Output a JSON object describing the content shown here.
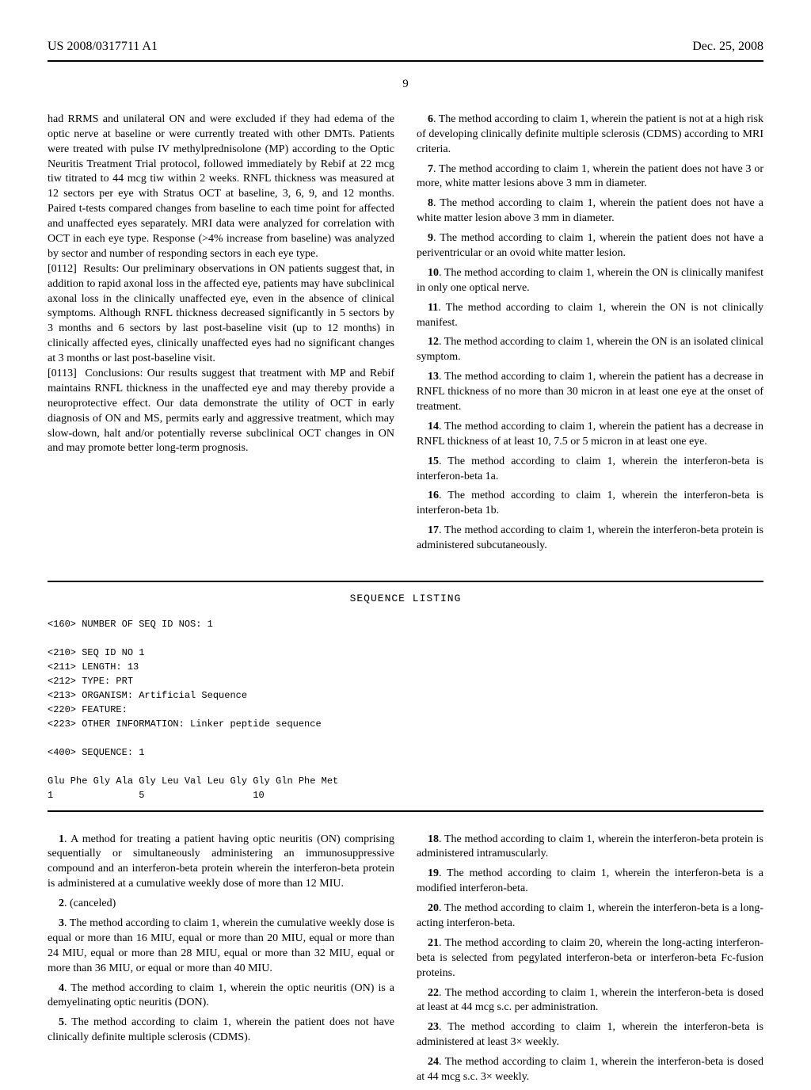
{
  "header": {
    "pub_number": "US 2008/0317711 A1",
    "pub_date": "Dec. 25, 2008"
  },
  "page_number": "9",
  "col_left": {
    "run_in": "had RRMS and unilateral ON and were excluded if they had edema of the optic nerve at baseline or were currently treated with other DMTs. Patients were treated with pulse IV methylprednisolone (MP) according to the Optic Neuritis Treatment Trial protocol, followed immediately by Rebif at 22 mcg tiw titrated to 44 mcg tiw within 2 weeks. RNFL thickness was measured at 12 sectors per eye with Stratus OCT at baseline, 3, 6, 9, and 12 months. Paired t-tests compared changes from baseline to each time point for affected and unaffected eyes separately. MRI data were analyzed for correlation with OCT in each eye type. Response (>4% increase from baseline) was analyzed by sector and number of responding sectors in each eye type.",
    "p0112_label": "[0112]",
    "p0112": "Results: Our preliminary observations in ON patients suggest that, in addition to rapid axonal loss in the affected eye, patients may have subclinical axonal loss in the clinically unaffected eye, even in the absence of clinical symptoms. Although RNFL thickness decreased significantly in 5 sectors by 3 months and 6 sectors by last post-baseline visit (up to 12 months) in clinically affected eyes, clinically unaffected eyes had no significant changes at 3 months or last post-baseline visit.",
    "p0113_label": "[0113]",
    "p0113": "Conclusions: Our results suggest that treatment with MP and Rebif maintains RNFL thickness in the unaffected eye and may thereby provide a neuroprotective effect. Our data demonstrate the utility of OCT in early diagnosis of ON and MS, permits early and aggressive treatment, which may slow-down, halt and/or potentially reverse subclinical OCT changes in ON and may promote better long-term prognosis."
  },
  "col_right": {
    "c6_num": "6",
    "c6": ". The method according to claim 1, wherein the patient is not at a high risk of developing clinically definite multiple sclerosis (CDMS) according to MRI criteria.",
    "c7_num": "7",
    "c7": ". The method according to claim 1, wherein the patient does not have 3 or more, white matter lesions above 3 mm in diameter.",
    "c8_num": "8",
    "c8": ". The method according to claim 1, wherein the patient does not have a white matter lesion above 3 mm in diameter.",
    "c9_num": "9",
    "c9": ". The method according to claim 1, wherein the patient does not have a periventricular or an ovoid white matter lesion.",
    "c10_num": "10",
    "c10": ". The method according to claim 1, wherein the ON is clinically manifest in only one optical nerve.",
    "c11_num": "11",
    "c11": ". The method according to claim 1, wherein the ON is not clinically manifest.",
    "c12_num": "12",
    "c12": ". The method according to claim 1, wherein the ON is an isolated clinical symptom.",
    "c13_num": "13",
    "c13": ". The method according to claim 1, wherein the patient has a decrease in RNFL thickness of no more than 30 micron in at least one eye at the onset of treatment.",
    "c14_num": "14",
    "c14": ". The method according to claim 1, wherein the patient has a decrease in RNFL thickness of at least 10, 7.5 or 5 micron in at least one eye.",
    "c15_num": "15",
    "c15": ". The method according to claim 1, wherein the interferon-beta is interferon-beta 1a.",
    "c16_num": "16",
    "c16": ". The method according to claim 1, wherein the interferon-beta is interferon-beta 1b.",
    "c17_num": "17",
    "c17": ". The method according to claim 1, wherein the interferon-beta protein is administered subcutaneously."
  },
  "sequence": {
    "title": "SEQUENCE LISTING",
    "body": "<160> NUMBER OF SEQ ID NOS: 1\n\n<210> SEQ ID NO 1\n<211> LENGTH: 13\n<212> TYPE: PRT\n<213> ORGANISM: Artificial Sequence\n<220> FEATURE:\n<223> OTHER INFORMATION: Linker peptide sequence\n\n<400> SEQUENCE: 1\n\nGlu Phe Gly Ala Gly Leu Val Leu Gly Gly Gln Phe Met\n1               5                   10"
  },
  "claims_left": {
    "c1_num": "1",
    "c1": ". A method for treating a patient having optic neuritis (ON) comprising sequentially or simultaneously administering an immunosuppressive compound and an interferon-beta protein wherein the interferon-beta protein is administered at a cumulative weekly dose of more than 12 MIU.",
    "c2_num": "2",
    "c2": ". (canceled)",
    "c3_num": "3",
    "c3": ". The method according to claim 1, wherein the cumulative weekly dose is equal or more than 16 MIU, equal or more than 20 MIU, equal or more than 24 MIU, equal or more than 28 MIU, equal or more than 32 MIU, equal or more than 36 MIU, or equal or more than 40 MIU.",
    "c4_num": "4",
    "c4": ". The method according to claim 1, wherein the optic neuritis (ON) is a demyelinating optic neuritis (DON).",
    "c5_num": "5",
    "c5": ". The method according to claim 1, wherein the patient does not have clinically definite multiple sclerosis (CDMS)."
  },
  "claims_right": {
    "c18_num": "18",
    "c18": ". The method according to claim 1, wherein the interferon-beta protein is administered intramuscularly.",
    "c19_num": "19",
    "c19": ". The method according to claim 1, wherein the interferon-beta is a modified interferon-beta.",
    "c20_num": "20",
    "c20": ". The method according to claim 1, wherein the interferon-beta is a long-acting interferon-beta.",
    "c21_num": "21",
    "c21": ". The method according to claim 20, wherein the long-acting interferon-beta is selected from pegylated interferon-beta or interferon-beta Fc-fusion proteins.",
    "c22_num": "22",
    "c22": ". The method according to claim 1, wherein the interferon-beta is dosed at least at 44 mcg s.c. per administration.",
    "c23_num": "23",
    "c23": ". The method according to claim 1, wherein the interferon-beta is administered at least 3× weekly.",
    "c24_num": "24",
    "c24": ". The method according to claim 1, wherein the interferon-beta is dosed at 44 mcg s.c. 3× weekly."
  }
}
